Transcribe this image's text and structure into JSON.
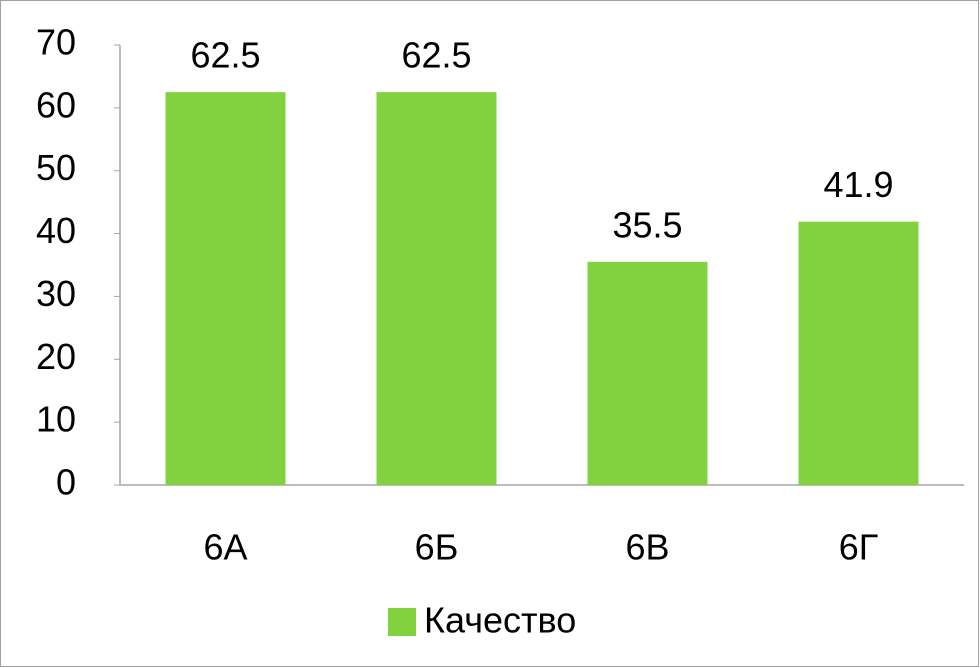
{
  "chart_data": {
    "type": "bar",
    "categories": [
      "6А",
      "6Б",
      "6В",
      "6Г"
    ],
    "series": [
      {
        "name": "Качество",
        "color": "#82d13f",
        "values": [
          62.5,
          62.5,
          35.5,
          41.9
        ]
      }
    ],
    "ylim": [
      0,
      70
    ],
    "yticks": [
      0,
      10,
      20,
      30,
      40,
      50,
      60,
      70
    ],
    "grid": false,
    "legend": "bottom"
  }
}
